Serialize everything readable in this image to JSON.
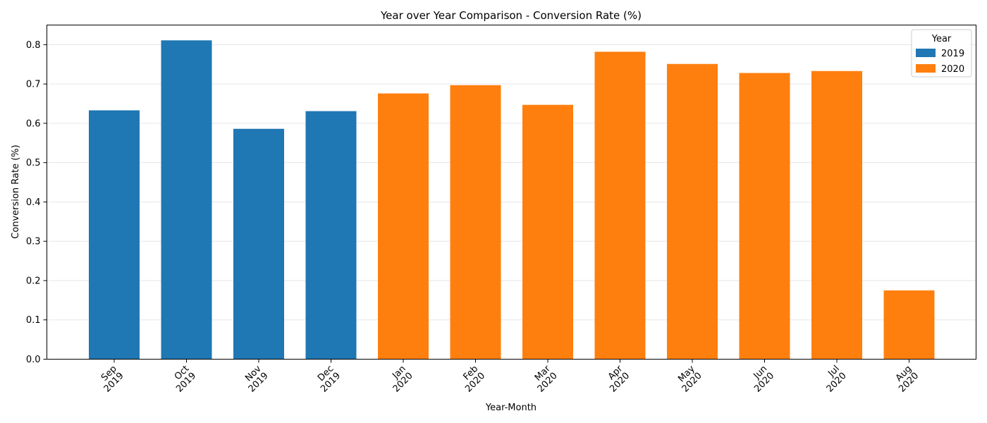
{
  "chart_data": {
    "type": "bar",
    "title": "Year over Year Comparison - Conversion Rate (%)",
    "xlabel": "Year-Month",
    "ylabel": "Conversion Rate (%)",
    "ylim": [
      0,
      0.85
    ],
    "yticks": [
      0.0,
      0.1,
      0.2,
      0.3,
      0.4,
      0.5,
      0.6,
      0.7,
      0.8
    ],
    "ytick_labels": [
      "0.0",
      "0.1",
      "0.2",
      "0.3",
      "0.4",
      "0.5",
      "0.6",
      "0.7",
      "0.8"
    ],
    "grid": "horizontal",
    "legend": {
      "title": "Year",
      "placement": "top-right",
      "entries": [
        {
          "label": "2019",
          "color": "#1f77b4"
        },
        {
          "label": "2020",
          "color": "#ff7f0e"
        }
      ]
    },
    "categories": [
      {
        "month": "Sep",
        "year": "2019",
        "value": 0.633
      },
      {
        "month": "Oct",
        "year": "2019",
        "value": 0.811
      },
      {
        "month": "Nov",
        "year": "2019",
        "value": 0.586
      },
      {
        "month": "Dec",
        "year": "2019",
        "value": 0.631
      },
      {
        "month": "Jan",
        "year": "2020",
        "value": 0.676
      },
      {
        "month": "Feb",
        "year": "2020",
        "value": 0.697
      },
      {
        "month": "Mar",
        "year": "2020",
        "value": 0.647
      },
      {
        "month": "Apr",
        "year": "2020",
        "value": 0.782
      },
      {
        "month": "May",
        "year": "2020",
        "value": 0.751
      },
      {
        "month": "Jun",
        "year": "2020",
        "value": 0.728
      },
      {
        "month": "Jul",
        "year": "2020",
        "value": 0.733
      },
      {
        "month": "Aug",
        "year": "2020",
        "value": 0.175
      }
    ]
  }
}
